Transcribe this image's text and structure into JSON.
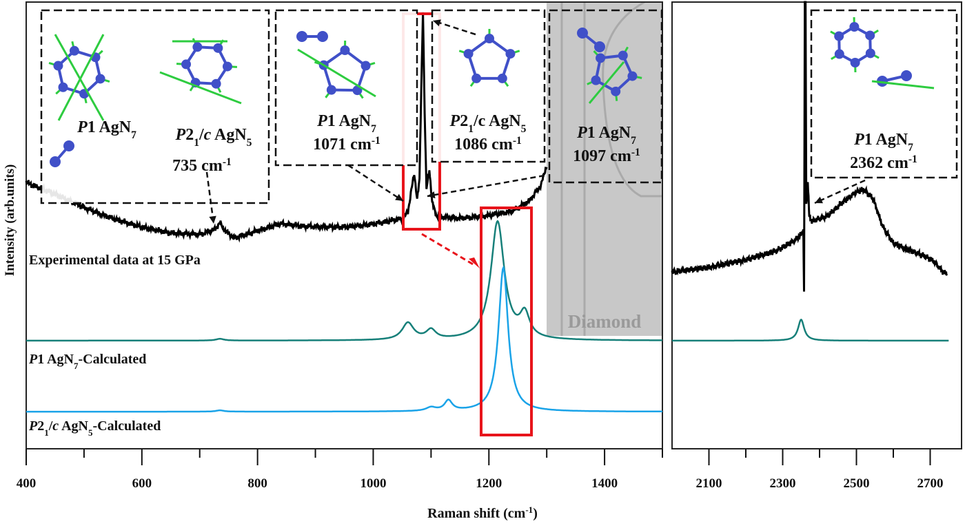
{
  "chart_data": {
    "type": "line",
    "xlabel": "Raman shift (cm-1)",
    "xlabel_parts": [
      [
        "Raman shift (cm",
        "n"
      ],
      [
        "-1",
        "sup"
      ],
      [
        ")",
        "n"
      ]
    ],
    "ylabel": "Intensity (arb.units)",
    "panels": [
      {
        "xlim": [
          400,
          1500
        ],
        "major_ticks": [
          400,
          600,
          800,
          1000,
          1200,
          1400
        ],
        "minor_ticks": [
          500,
          700,
          900,
          1100,
          1300,
          1500
        ]
      },
      {
        "xlim": [
          2000,
          2800
        ],
        "major_ticks": [
          2100,
          2300,
          2500,
          2700
        ],
        "minor_ticks": [
          2200,
          2400,
          2600
        ]
      }
    ],
    "ylim": [
      0,
      100
    ],
    "series": [
      {
        "name": "Experimental data at 15 GPa",
        "color": "#000000",
        "label_parts": [
          [
            "Experimental data at 15 GPa",
            "n"
          ]
        ],
        "points_left": [
          [
            400,
            59.6
          ],
          [
            450,
            57
          ],
          [
            500,
            54
          ],
          [
            550,
            51.5
          ],
          [
            600,
            49.6
          ],
          [
            650,
            48.3
          ],
          [
            700,
            48
          ],
          [
            725,
            49
          ],
          [
            735,
            50.6
          ],
          [
            745,
            48.6
          ],
          [
            760,
            47.2
          ],
          [
            800,
            48.8
          ],
          [
            840,
            50.4
          ],
          [
            880,
            49.8
          ],
          [
            950,
            49.6
          ],
          [
            1000,
            50.3
          ],
          [
            1050,
            51.5
          ],
          [
            1060,
            53
          ],
          [
            1066,
            58
          ],
          [
            1071,
            61.5
          ],
          [
            1076,
            56
          ],
          [
            1080,
            60
          ],
          [
            1083,
            80
          ],
          [
            1086,
            97.7
          ],
          [
            1089,
            75
          ],
          [
            1092,
            58
          ],
          [
            1097,
            62.7
          ],
          [
            1102,
            55
          ],
          [
            1110,
            52
          ],
          [
            1150,
            51.6
          ],
          [
            1200,
            52.2
          ],
          [
            1240,
            53.2
          ],
          [
            1270,
            55.5
          ],
          [
            1290,
            59
          ],
          [
            1300,
            63.5
          ]
        ],
        "points_right": [
          [
            2000,
            39.6
          ],
          [
            2100,
            40.6
          ],
          [
            2200,
            42.3
          ],
          [
            2280,
            44.2
          ],
          [
            2330,
            46.5
          ],
          [
            2350,
            48
          ],
          [
            2356,
            49
          ],
          [
            2358,
            35
          ],
          [
            2360,
            100
          ],
          [
            2362,
            100
          ],
          [
            2364,
            55
          ],
          [
            2368,
            60
          ],
          [
            2372,
            52
          ],
          [
            2380,
            51
          ],
          [
            2420,
            52
          ],
          [
            2460,
            55
          ],
          [
            2500,
            57.5
          ],
          [
            2520,
            58
          ],
          [
            2545,
            56
          ],
          [
            2570,
            50
          ],
          [
            2600,
            46
          ],
          [
            2640,
            44.5
          ],
          [
            2680,
            43.3
          ],
          [
            2710,
            42
          ],
          [
            2725,
            40.5
          ],
          [
            2735,
            39.6
          ],
          [
            2745,
            39.2
          ]
        ]
      },
      {
        "name": "P1 AgN7-Calculated",
        "color": "#17807a",
        "label_parts": [
          [
            "P",
            "i"
          ],
          [
            "1 AgN",
            "n"
          ],
          [
            "7",
            "sub"
          ],
          [
            "-Calculated",
            "n"
          ]
        ],
        "baseline": 24.2,
        "peaks_left": [
          [
            735,
            0.4,
            8
          ],
          [
            1060,
            3.8,
            12
          ],
          [
            1100,
            2.1,
            10
          ],
          [
            1215,
            26.5,
            14
          ],
          [
            1262,
            5.2,
            10
          ]
        ],
        "peaks_right": [
          [
            2350,
            4.7,
            10
          ]
        ],
        "xmax_right": 2750
      },
      {
        "name": "P21/c AgN5-Calculated",
        "color": "#1aa3e8",
        "label_parts": [
          [
            "P",
            "i"
          ],
          [
            "2",
            "n"
          ],
          [
            "1",
            "sub"
          ],
          [
            "/",
            "n"
          ],
          [
            "c",
            "i"
          ],
          [
            " AgN",
            "n"
          ],
          [
            "5",
            "sub"
          ],
          [
            "-Calculated",
            "n"
          ]
        ],
        "baseline": 8.3,
        "peaks_left": [
          [
            735,
            0.3,
            8
          ],
          [
            1100,
            0.8,
            10
          ],
          [
            1130,
            2.3,
            8
          ],
          [
            1225,
            32.2,
            10
          ]
        ]
      }
    ],
    "annotations": [
      {
        "lines": [
          [
            [
              "P",
              "i"
            ],
            [
              "1 AgN",
              "n"
            ],
            [
              "7",
              "sub"
            ]
          ]
        ]
      },
      {
        "lines": [
          [
            [
              "P",
              "i"
            ],
            [
              "2",
              "n"
            ],
            [
              "1",
              "sub"
            ],
            [
              "/",
              "n"
            ],
            [
              "c",
              "i"
            ],
            [
              " AgN",
              "n"
            ],
            [
              "5",
              "sub"
            ]
          ]
        ]
      },
      {
        "lines": [
          [
            [
              "735 cm",
              "n"
            ],
            [
              "-1",
              "sup"
            ]
          ]
        ]
      },
      {
        "lines": [
          [
            [
              "P",
              "i"
            ],
            [
              "1 AgN",
              "n"
            ],
            [
              "7",
              "sub"
            ]
          ],
          [
            [
              "1071 cm",
              "n"
            ],
            [
              "-1",
              "sup"
            ]
          ]
        ]
      },
      {
        "lines": [
          [
            [
              "P",
              "i"
            ],
            [
              "2",
              "n"
            ],
            [
              "1",
              "sub"
            ],
            [
              "/c AgN",
              "n"
            ],
            [
              "5",
              "sub"
            ]
          ],
          [
            [
              "1086 cm",
              "n"
            ],
            [
              "-1",
              "sup"
            ]
          ]
        ]
      },
      {
        "lines": [
          [
            [
              "P",
              "i"
            ],
            [
              "1 AgN",
              "n"
            ],
            [
              "7",
              "sub"
            ]
          ],
          [
            [
              "1097 cm",
              "n"
            ],
            [
              "-1",
              "sup"
            ]
          ]
        ]
      },
      {
        "lines": [
          [
            [
              "P",
              "i"
            ],
            [
              "1 AgN",
              "n"
            ],
            [
              "7",
              "sub"
            ]
          ],
          [
            [
              "2362 cm",
              "n"
            ],
            [
              "-1",
              "sup"
            ]
          ]
        ]
      }
    ],
    "region_label": "Diamond",
    "colors": {
      "highlight": "#e8141b",
      "diamond_region": "#c8c8c8",
      "atom": "#4050c8",
      "vector": "#2ecc40"
    }
  }
}
